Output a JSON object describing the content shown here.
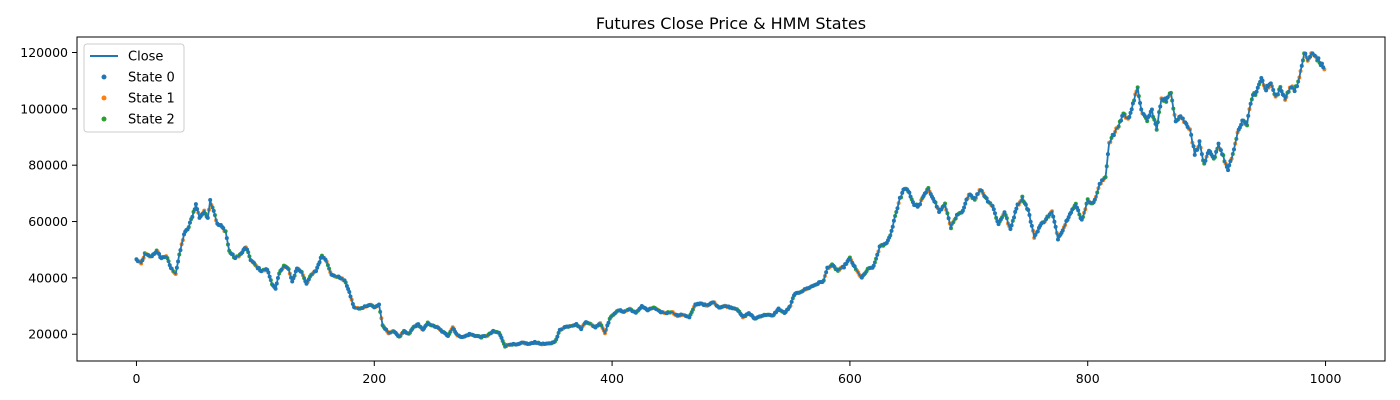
{
  "chart_data": {
    "type": "line",
    "title": "Futures Close Price & HMM States",
    "xlabel": "",
    "ylabel": "",
    "xlim": [
      -50,
      1050
    ],
    "ylim": [
      10500,
      125500
    ],
    "xticks": [
      0,
      200,
      400,
      600,
      800,
      1000
    ],
    "xtick_labels": [
      "0",
      "200",
      "400",
      "600",
      "800",
      "1000"
    ],
    "yticks": [
      20000,
      40000,
      60000,
      80000,
      100000,
      120000
    ],
    "ytick_labels": [
      "20000",
      "40000",
      "60000",
      "80000",
      "100000",
      "120000"
    ],
    "grid": false,
    "legend_position": "top-left",
    "colors": {
      "close": "#1f77b4",
      "state0": "#1f77b4",
      "state1": "#ff7f0e",
      "state2": "#2ca02c"
    },
    "legend": [
      {
        "label": "Close",
        "kind": "line",
        "color": "#1f77b4"
      },
      {
        "label": "State 0",
        "kind": "dot",
        "color": "#1f77b4"
      },
      {
        "label": "State 1",
        "kind": "dot",
        "color": "#ff7f0e"
      },
      {
        "label": "State 2",
        "kind": "dot",
        "color": "#2ca02c"
      }
    ],
    "series": [
      {
        "name": "Close",
        "points": [
          [
            0,
            46500
          ],
          [
            4,
            45000
          ],
          [
            7,
            48500
          ],
          [
            12,
            47500
          ],
          [
            17,
            49500
          ],
          [
            21,
            47000
          ],
          [
            25,
            47800
          ],
          [
            29,
            43500
          ],
          [
            33,
            41500
          ],
          [
            36,
            48000
          ],
          [
            40,
            55500
          ],
          [
            44,
            58000
          ],
          [
            47,
            62000
          ],
          [
            50,
            66000
          ],
          [
            53,
            61500
          ],
          [
            57,
            63500
          ],
          [
            60,
            61500
          ],
          [
            62,
            67500
          ],
          [
            65,
            64000
          ],
          [
            68,
            59000
          ],
          [
            71,
            58500
          ],
          [
            75,
            56500
          ],
          [
            78,
            49500
          ],
          [
            83,
            47000
          ],
          [
            88,
            48500
          ],
          [
            92,
            51000
          ],
          [
            96,
            46500
          ],
          [
            101,
            44000
          ],
          [
            105,
            42500
          ],
          [
            110,
            43000
          ],
          [
            114,
            38000
          ],
          [
            117,
            36000
          ],
          [
            120,
            41500
          ],
          [
            124,
            44500
          ],
          [
            128,
            43000
          ],
          [
            131,
            38500
          ],
          [
            135,
            43500
          ],
          [
            139,
            42000
          ],
          [
            143,
            38000
          ],
          [
            147,
            41000
          ],
          [
            151,
            42500
          ],
          [
            156,
            48000
          ],
          [
            160,
            46000
          ],
          [
            164,
            41000
          ],
          [
            168,
            40500
          ],
          [
            172,
            40000
          ],
          [
            176,
            38500
          ],
          [
            180,
            33500
          ],
          [
            183,
            29500
          ],
          [
            188,
            29000
          ],
          [
            193,
            30000
          ],
          [
            197,
            30500
          ],
          [
            200,
            29500
          ],
          [
            204,
            30500
          ],
          [
            207,
            23000
          ],
          [
            212,
            20500
          ],
          [
            217,
            21000
          ],
          [
            221,
            19000
          ],
          [
            225,
            21000
          ],
          [
            229,
            20000
          ],
          [
            233,
            22500
          ],
          [
            237,
            23500
          ],
          [
            241,
            21500
          ],
          [
            245,
            24000
          ],
          [
            249,
            23000
          ],
          [
            253,
            22500
          ],
          [
            257,
            21000
          ],
          [
            262,
            19500
          ],
          [
            266,
            22500
          ],
          [
            270,
            19500
          ],
          [
            275,
            19000
          ],
          [
            280,
            20000
          ],
          [
            285,
            19500
          ],
          [
            290,
            19000
          ],
          [
            295,
            19500
          ],
          [
            300,
            21000
          ],
          [
            305,
            20500
          ],
          [
            310,
            15800
          ],
          [
            315,
            16500
          ],
          [
            320,
            16200
          ],
          [
            325,
            17000
          ],
          [
            330,
            16500
          ],
          [
            335,
            17200
          ],
          [
            340,
            16600
          ],
          [
            345,
            16500
          ],
          [
            350,
            17000
          ],
          [
            353,
            18000
          ],
          [
            356,
            21500
          ],
          [
            360,
            22500
          ],
          [
            365,
            23000
          ],
          [
            370,
            23500
          ],
          [
            374,
            22000
          ],
          [
            378,
            24500
          ],
          [
            382,
            23500
          ],
          [
            386,
            22500
          ],
          [
            390,
            24000
          ],
          [
            394,
            20500
          ],
          [
            398,
            25500
          ],
          [
            402,
            27500
          ],
          [
            406,
            28500
          ],
          [
            410,
            28000
          ],
          [
            415,
            29000
          ],
          [
            420,
            27500
          ],
          [
            425,
            30000
          ],
          [
            430,
            28500
          ],
          [
            435,
            29500
          ],
          [
            440,
            28000
          ],
          [
            445,
            27500
          ],
          [
            450,
            28000
          ],
          [
            455,
            26500
          ],
          [
            460,
            27000
          ],
          [
            465,
            26000
          ],
          [
            470,
            30500
          ],
          [
            475,
            31000
          ],
          [
            480,
            30000
          ],
          [
            485,
            31500
          ],
          [
            490,
            29500
          ],
          [
            495,
            30000
          ],
          [
            500,
            29500
          ],
          [
            505,
            29000
          ],
          [
            510,
            26000
          ],
          [
            515,
            27500
          ],
          [
            520,
            25500
          ],
          [
            525,
            26500
          ],
          [
            530,
            27000
          ],
          [
            535,
            26500
          ],
          [
            540,
            29000
          ],
          [
            545,
            27500
          ],
          [
            550,
            30000
          ],
          [
            553,
            34000
          ],
          [
            558,
            35000
          ],
          [
            563,
            36000
          ],
          [
            568,
            37000
          ],
          [
            573,
            38000
          ],
          [
            578,
            39000
          ],
          [
            581,
            43500
          ],
          [
            585,
            44500
          ],
          [
            590,
            42500
          ],
          [
            595,
            44000
          ],
          [
            600,
            47000
          ],
          [
            605,
            43000
          ],
          [
            610,
            40000
          ],
          [
            615,
            43000
          ],
          [
            620,
            44000
          ],
          [
            625,
            51000
          ],
          [
            630,
            52000
          ],
          [
            634,
            55000
          ],
          [
            638,
            62000
          ],
          [
            642,
            68000
          ],
          [
            646,
            72000
          ],
          [
            650,
            70000
          ],
          [
            654,
            66000
          ],
          [
            658,
            65500
          ],
          [
            662,
            69000
          ],
          [
            666,
            71500
          ],
          [
            670,
            68500
          ],
          [
            675,
            63500
          ],
          [
            680,
            66000
          ],
          [
            685,
            58000
          ],
          [
            690,
            62000
          ],
          [
            695,
            63500
          ],
          [
            700,
            70000
          ],
          [
            705,
            68000
          ],
          [
            710,
            71500
          ],
          [
            715,
            68000
          ],
          [
            720,
            65500
          ],
          [
            725,
            59000
          ],
          [
            730,
            63500
          ],
          [
            735,
            57000
          ],
          [
            740,
            65000
          ],
          [
            745,
            68500
          ],
          [
            750,
            64000
          ],
          [
            755,
            54500
          ],
          [
            760,
            58500
          ],
          [
            765,
            61000
          ],
          [
            770,
            63500
          ],
          [
            775,
            54000
          ],
          [
            780,
            58000
          ],
          [
            785,
            63000
          ],
          [
            790,
            66000
          ],
          [
            795,
            60500
          ],
          [
            800,
            67500
          ],
          [
            805,
            66500
          ],
          [
            810,
            73000
          ],
          [
            815,
            76000
          ],
          [
            818,
            88000
          ],
          [
            822,
            91000
          ],
          [
            826,
            94000
          ],
          [
            830,
            98500
          ],
          [
            834,
            96000
          ],
          [
            838,
            102000
          ],
          [
            842,
            107000
          ],
          [
            846,
            98000
          ],
          [
            850,
            96000
          ],
          [
            854,
            99500
          ],
          [
            858,
            92500
          ],
          [
            862,
            104000
          ],
          [
            866,
            103000
          ],
          [
            870,
            105500
          ],
          [
            874,
            96000
          ],
          [
            878,
            97500
          ],
          [
            882,
            95000
          ],
          [
            886,
            93000
          ],
          [
            890,
            84000
          ],
          [
            894,
            88000
          ],
          [
            898,
            80000
          ],
          [
            902,
            85000
          ],
          [
            906,
            82000
          ],
          [
            910,
            87500
          ],
          [
            914,
            83000
          ],
          [
            918,
            78000
          ],
          [
            922,
            84000
          ],
          [
            926,
            91000
          ],
          [
            930,
            96000
          ],
          [
            934,
            94500
          ],
          [
            938,
            104000
          ],
          [
            942,
            106000
          ],
          [
            946,
            111000
          ],
          [
            950,
            107000
          ],
          [
            954,
            109000
          ],
          [
            958,
            104000
          ],
          [
            962,
            107500
          ],
          [
            966,
            103000
          ],
          [
            970,
            108000
          ],
          [
            974,
            107000
          ],
          [
            978,
            110500
          ],
          [
            982,
            120000
          ],
          [
            985,
            117000
          ],
          [
            988,
            119500
          ],
          [
            992,
            118500
          ],
          [
            996,
            116000
          ],
          [
            999,
            114000
          ]
        ]
      }
    ]
  }
}
